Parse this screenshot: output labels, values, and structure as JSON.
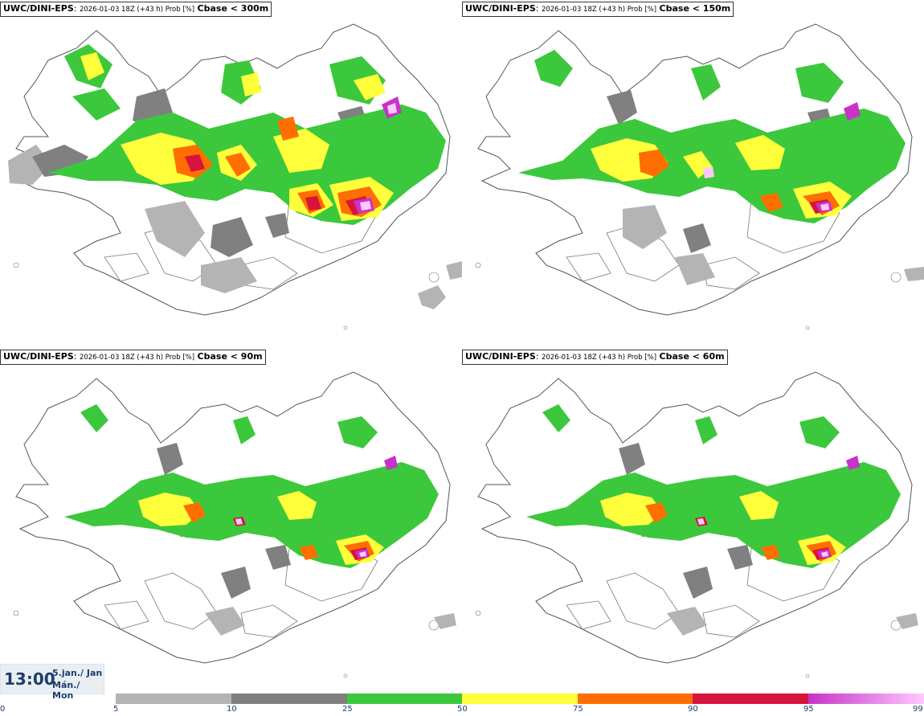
{
  "panels": [
    {
      "model": "UWC/DINI-EPS",
      "meta": "2026-01-03 18Z (+43 h) Prob [%]",
      "threshold": "Cbase < 300m"
    },
    {
      "model": "UWC/DINI-EPS",
      "meta": "2026-01-03 18Z (+43 h) Prob [%]",
      "threshold": "Cbase < 150m"
    },
    {
      "model": "UWC/DINI-EPS",
      "meta": "2026-01-03 18Z (+43 h) Prob [%]",
      "threshold": "Cbase < 90m"
    },
    {
      "model": "UWC/DINI-EPS",
      "meta": "2026-01-03 18Z (+43 h) Prob [%]",
      "threshold": "Cbase < 60m"
    }
  ],
  "valid_time": {
    "time": "13:00",
    "date_line1": "5.jan./ Jan",
    "date_line2": "Mán./ Mon"
  },
  "legend": {
    "ticks": [
      "0",
      "5",
      "10",
      "25",
      "50",
      "75",
      "90",
      "95",
      "99"
    ],
    "bins": [
      {
        "from": 5,
        "to": 10,
        "color": "#b4b4b4"
      },
      {
        "from": 10,
        "to": 25,
        "color": "#808080"
      },
      {
        "from": 25,
        "to": 50,
        "color": "#3cc83c"
      },
      {
        "from": 50,
        "to": 75,
        "color": "#ffff3c"
      },
      {
        "from": 75,
        "to": 90,
        "color": "#ff6e00"
      },
      {
        "from": 90,
        "to": 95,
        "color": "#d7143c"
      },
      {
        "from": 95,
        "to": 99,
        "gradient": [
          "#c832c8",
          "#ffc8ff"
        ]
      }
    ]
  },
  "colors": {
    "coastline": "#555555",
    "time_text": "#1b3f6a",
    "time_bg": "#e9eef3"
  }
}
